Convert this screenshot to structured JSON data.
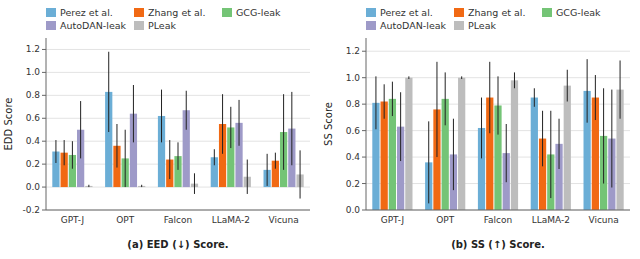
{
  "chart_data": [
    {
      "type": "bar",
      "xlabel": "(a) EED (↓) Score.",
      "ylabel": "EDD Score",
      "categories": [
        "GPT-J",
        "OPT",
        "Falcon",
        "LLaMA-2",
        "Vicuna"
      ],
      "series": [
        {
          "name": "Perez et al.",
          "color": "#6baed6",
          "values": [
            0.31,
            0.83,
            0.62,
            0.26,
            0.15
          ],
          "errors": [
            0.1,
            0.35,
            0.23,
            0.07,
            0.14
          ]
        },
        {
          "name": "Zhang et al.",
          "color": "#f16913",
          "values": [
            0.3,
            0.36,
            0.24,
            0.55,
            0.23
          ],
          "errors": [
            0.11,
            0.19,
            0.17,
            0.26,
            0.07
          ]
        },
        {
          "name": "GCG-leak",
          "color": "#74c476",
          "values": [
            0.28,
            0.25,
            0.27,
            0.52,
            0.48
          ],
          "errors": [
            0.12,
            0.25,
            0.12,
            0.18,
            0.33
          ]
        },
        {
          "name": "AutoDAN-leak",
          "color": "#9e9ac8",
          "values": [
            0.5,
            0.64,
            0.67,
            0.56,
            0.51
          ],
          "errors": [
            0.25,
            0.25,
            0.17,
            0.2,
            0.32
          ]
        },
        {
          "name": "PLeak",
          "color": "#bdbdbd",
          "values": [
            0.01,
            0.01,
            0.03,
            0.09,
            0.11
          ],
          "errors": [
            0.01,
            0.01,
            0.09,
            0.15,
            0.21
          ]
        }
      ],
      "ylim": [
        -0.2,
        1.3
      ],
      "yticks": [
        -0.2,
        {
          "value": 0,
          "label": "0.0"
        },
        0.2,
        0.4,
        0.6,
        0.8,
        {
          "value": 1,
          "label": "1.0"
        },
        1.2
      ],
      "grid": true,
      "legend": "upper right"
    },
    {
      "type": "bar",
      "xlabel": "(b) SS (↑) Score.",
      "ylabel": "SS Score",
      "categories": [
        "GPT-J",
        "OPT",
        "Falcon",
        "LLaMA-2",
        "Vicuna"
      ],
      "series": [
        {
          "name": "Perez et al.",
          "color": "#6baed6",
          "values": [
            0.81,
            0.36,
            0.62,
            0.85,
            0.9
          ],
          "errors": [
            0.2,
            0.31,
            0.23,
            0.07,
            0.24
          ]
        },
        {
          "name": "Zhang et al.",
          "color": "#f16913",
          "values": [
            0.82,
            0.76,
            0.85,
            0.54,
            0.85
          ],
          "errors": [
            0.13,
            0.36,
            0.27,
            0.21,
            0.17
          ]
        },
        {
          "name": "GCG-leak",
          "color": "#74c476",
          "values": [
            0.84,
            0.84,
            0.79,
            0.42,
            0.56
          ],
          "errors": [
            0.13,
            0.2,
            0.22,
            0.33,
            0.36
          ]
        },
        {
          "name": "AutoDAN-leak",
          "color": "#9e9ac8",
          "values": [
            0.63,
            0.42,
            0.43,
            0.5,
            0.54
          ],
          "errors": [
            0.26,
            0.27,
            0.22,
            0.19,
            0.37
          ]
        },
        {
          "name": "PLeak",
          "color": "#bdbdbd",
          "values": [
            1.0,
            1.0,
            0.98,
            0.94,
            0.91
          ],
          "errors": [
            0.01,
            0.01,
            0.06,
            0.12,
            0.22
          ]
        }
      ],
      "ylim": [
        0.0,
        1.3
      ],
      "yticks": [
        {
          "value": 0,
          "label": "0.0"
        },
        0.2,
        0.4,
        0.6,
        0.8,
        {
          "value": 1,
          "label": "1.0"
        },
        1.2
      ],
      "grid": true,
      "legend": "upper right"
    }
  ]
}
